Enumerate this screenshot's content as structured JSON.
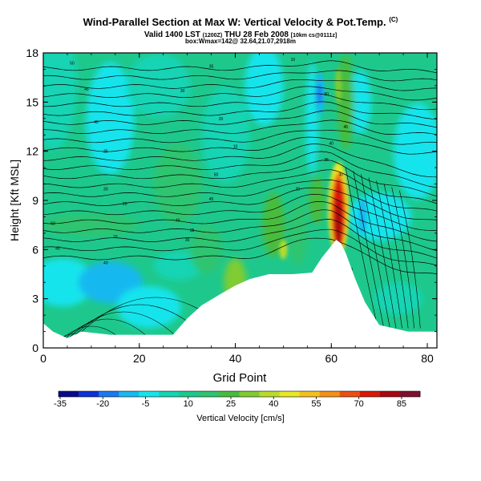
{
  "title": "Wind-Parallel Section at Max W: Vertical Velocity & Pot.Temp.",
  "title_mark": "(C)",
  "subtitle_main": "Valid 1400 LST",
  "subtitle_small1": "(1200Z)",
  "subtitle_main2": "THU 28 Feb 2008",
  "subtitle_small2": "[10km cs@0111z]",
  "subtitle2": "box:Wmax=142@ 32.64,21.07,2918m",
  "chart_data": {
    "type": "heatmap",
    "title": "Wind-Parallel Section at Max W: Vertical Velocity & Pot.Temp.",
    "xlabel": "Grid Point",
    "ylabel": "Height [Kft MSL]",
    "xlim": [
      0,
      82
    ],
    "ylim": [
      0,
      18
    ],
    "x_ticks": [
      "0",
      "20",
      "40",
      "60",
      "80"
    ],
    "y_ticks": [
      "0",
      "3",
      "6",
      "9",
      "12",
      "15",
      "18"
    ],
    "colorbar": {
      "label": "Vertical Velocity [cm/s]",
      "tick_labels": [
        "-35",
        "-20",
        "-5",
        "10",
        "25",
        "40",
        "55",
        "70",
        "85"
      ],
      "colors": [
        "#0a0a8c",
        "#1030d8",
        "#1a7af0",
        "#18b8f0",
        "#16e4ec",
        "#14d4b4",
        "#1ec88c",
        "#2ec470",
        "#48bc3c",
        "#80cc30",
        "#b8dc2a",
        "#e8e828",
        "#f4c020",
        "#f49018",
        "#ec5010",
        "#d81808",
        "#a80810",
        "#801030"
      ]
    },
    "w_field_summary": {
      "background": "10 to 15 cm/s",
      "max_updraft": "85+ cm/s near grid point 61, 6-10 Kft",
      "downdraft_core": "-5 cm/s near grid point 57, 14-17 Kft"
    },
    "terrain_kft": [
      [
        0,
        1.5
      ],
      [
        2,
        1.0
      ],
      [
        5,
        0.6
      ],
      [
        8,
        1.0
      ],
      [
        14,
        0.8
      ],
      [
        20,
        0.8
      ],
      [
        27,
        0.8
      ],
      [
        30,
        1.8
      ],
      [
        33,
        2.6
      ],
      [
        37,
        3.3
      ],
      [
        40,
        3.8
      ],
      [
        43,
        4.2
      ],
      [
        47,
        4.5
      ],
      [
        52,
        4.5
      ],
      [
        56,
        4.6
      ],
      [
        58,
        5.5
      ],
      [
        61,
        6.6
      ],
      [
        62,
        6.4
      ],
      [
        63,
        5.8
      ],
      [
        65,
        4.2
      ],
      [
        67,
        2.8
      ],
      [
        70,
        1.4
      ],
      [
        73,
        1.2
      ],
      [
        76,
        1.0
      ],
      [
        80,
        1.0
      ],
      [
        82,
        1.0
      ]
    ],
    "theta_contour_labels": [
      "50",
      "45",
      "40",
      "35",
      "30",
      "20",
      "10"
    ]
  }
}
